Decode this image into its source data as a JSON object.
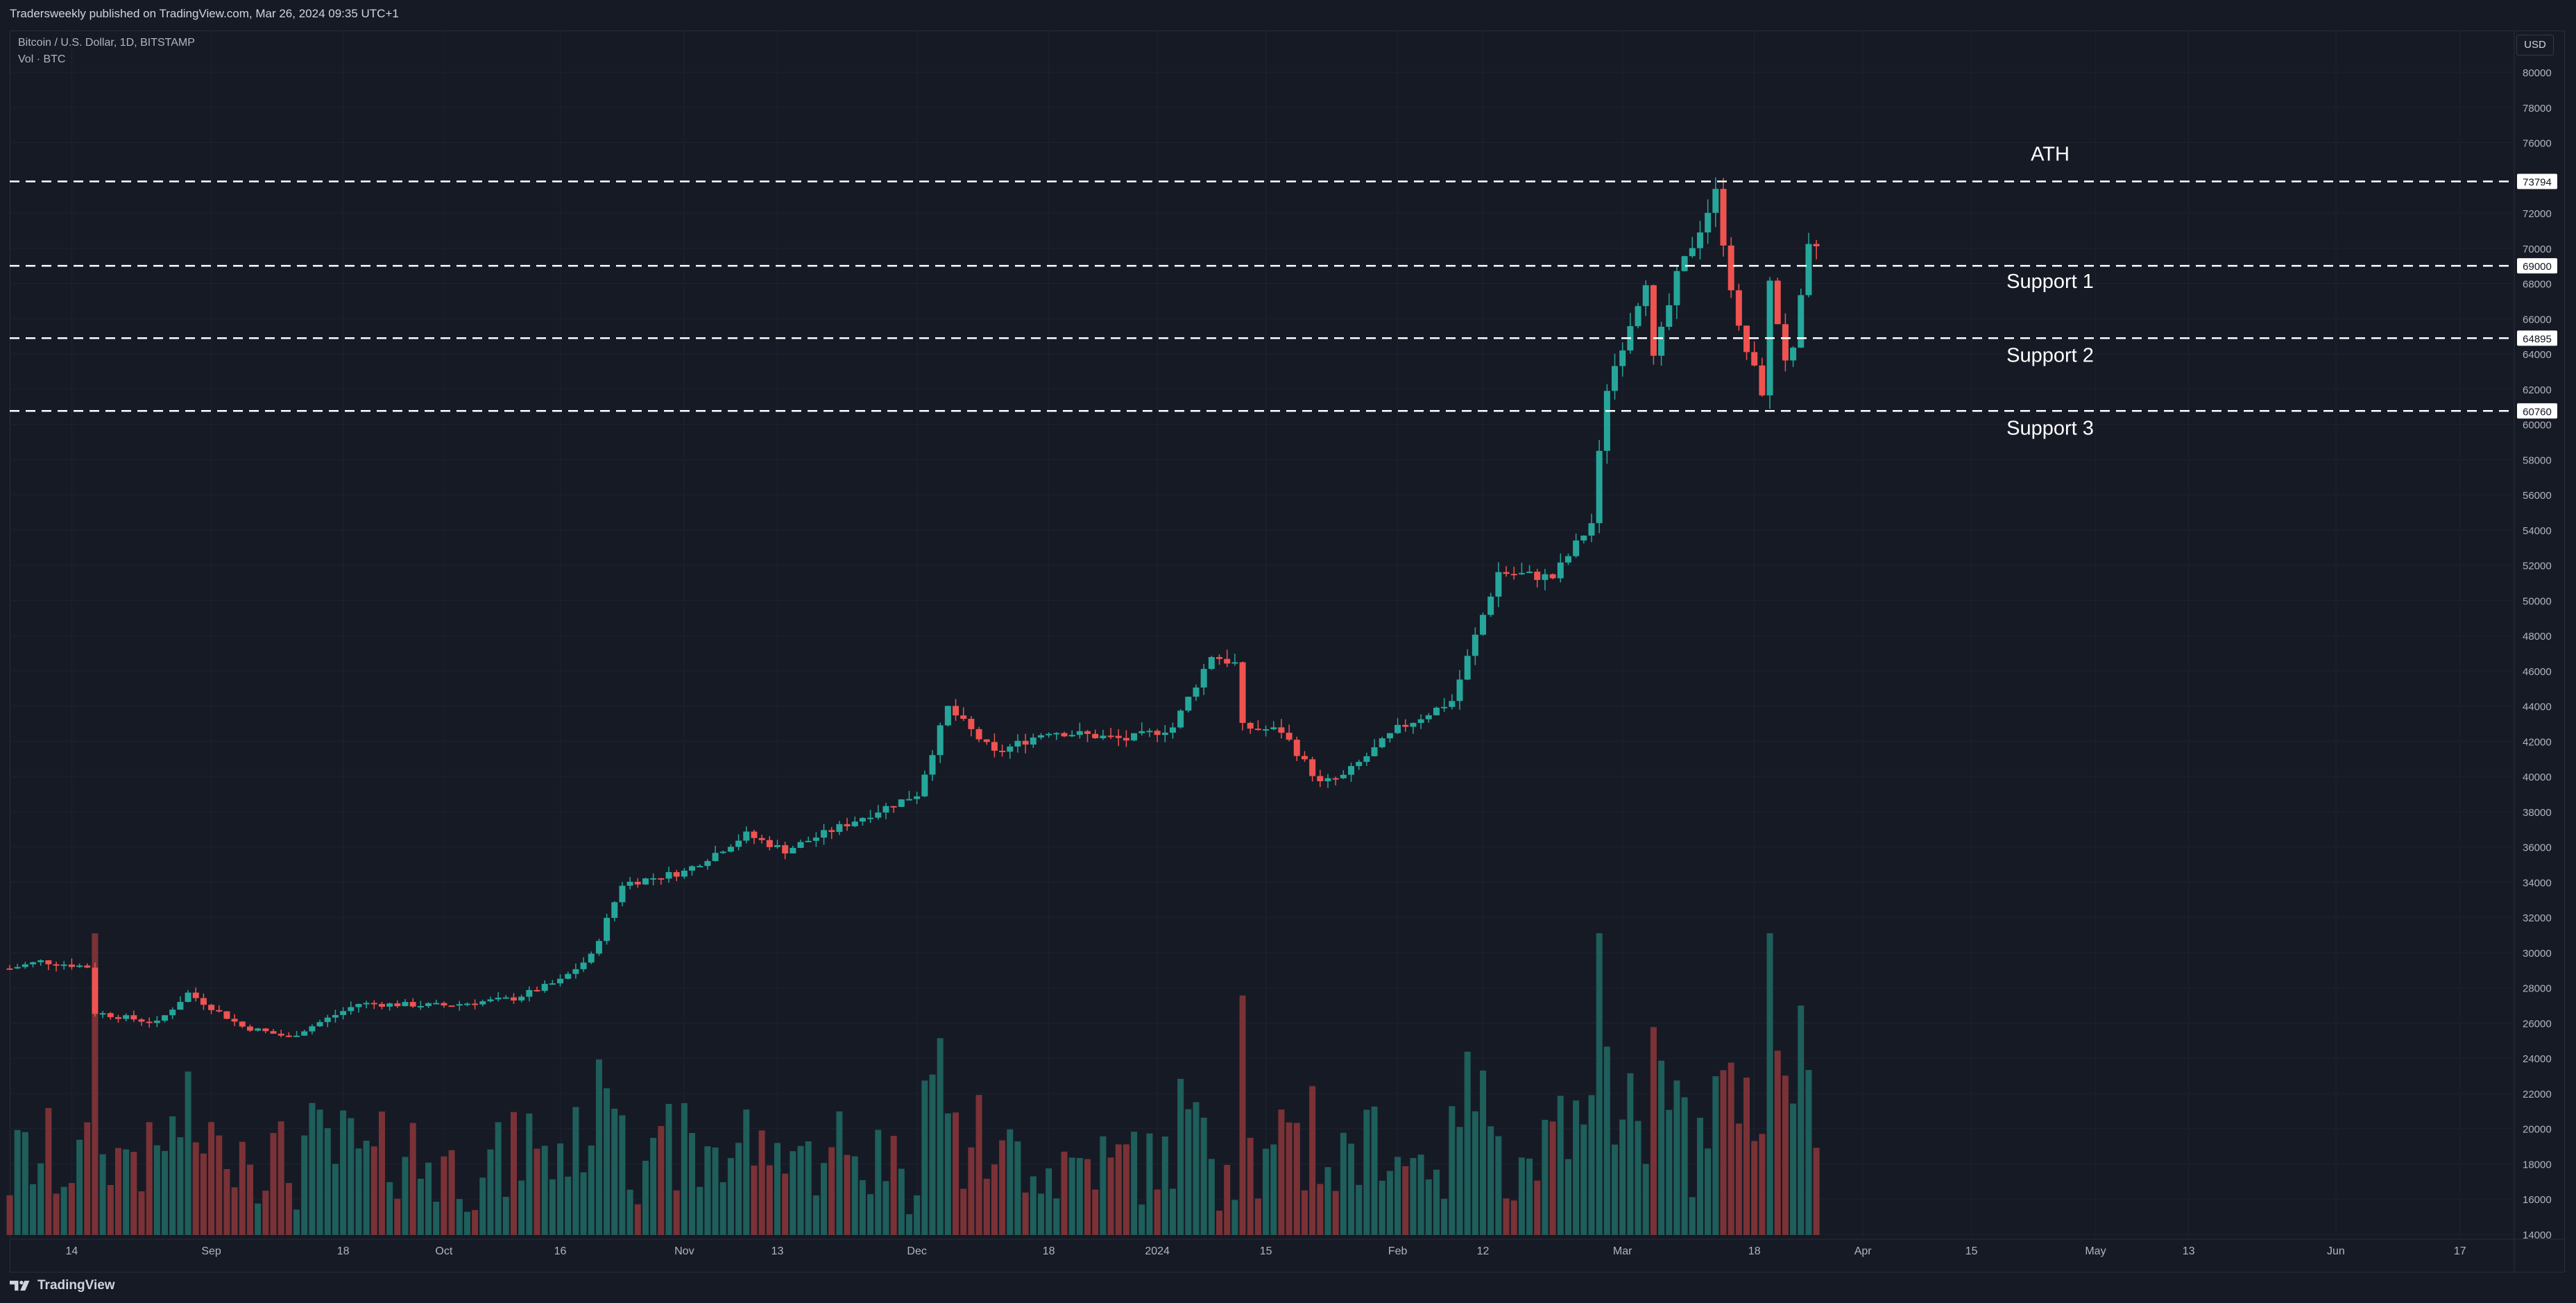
{
  "header": {
    "published": "Tradersweekly published on TradingView.com, Mar 26, 2024 09:35 UTC+1"
  },
  "legend": {
    "symbol": "Bitcoin / U.S. Dollar, 1D, BITSTAMP",
    "volume": "Vol · BTC"
  },
  "currency": "USD",
  "footer": {
    "logo_text": "TradingView",
    "logo_icon": "tradingview-logo-icon"
  },
  "colors": {
    "up": "#26a69a",
    "down": "#ef5350",
    "vol_up": "#1e5e5b",
    "vol_down": "#7a3236",
    "background": "#161a25",
    "grid": "#1f2330",
    "axis_text": "#b2b5be",
    "level_line": "#ffffff"
  },
  "chart_data": {
    "type": "candlestick",
    "title": "",
    "x_range": [
      "2023-08-06",
      "2024-06-24"
    ],
    "price_axis": {
      "min": 14000,
      "max": 80000,
      "ticks": [
        80000,
        78000,
        76000,
        72000,
        70000,
        68000,
        66000,
        64000,
        62000,
        60000,
        58000,
        56000,
        54000,
        52000,
        50000,
        48000,
        46000,
        44000,
        42000,
        40000,
        38000,
        36000,
        34000,
        32000,
        30000,
        28000,
        26000,
        24000,
        22000,
        20000,
        18000,
        16000,
        14000
      ]
    },
    "time_axis": {
      "ticks": [
        {
          "label": "14",
          "date": "2023-08-14"
        },
        {
          "label": "Sep",
          "date": "2023-09-01"
        },
        {
          "label": "18",
          "date": "2023-09-18"
        },
        {
          "label": "Oct",
          "date": "2023-10-01"
        },
        {
          "label": "16",
          "date": "2023-10-16"
        },
        {
          "label": "Nov",
          "date": "2023-11-01"
        },
        {
          "label": "13",
          "date": "2023-11-13"
        },
        {
          "label": "Dec",
          "date": "2023-12-01"
        },
        {
          "label": "18",
          "date": "2023-12-18"
        },
        {
          "label": "2024",
          "date": "2024-01-01"
        },
        {
          "label": "15",
          "date": "2024-01-15"
        },
        {
          "label": "Feb",
          "date": "2024-02-01"
        },
        {
          "label": "12",
          "date": "2024-02-12"
        },
        {
          "label": "Mar",
          "date": "2024-03-01"
        },
        {
          "label": "18",
          "date": "2024-03-18"
        },
        {
          "label": "Apr",
          "date": "2024-04-01"
        },
        {
          "label": "15",
          "date": "2024-04-15"
        },
        {
          "label": "May",
          "date": "2024-05-01"
        },
        {
          "label": "13",
          "date": "2024-05-13"
        },
        {
          "label": "Jun",
          "date": "2024-06-01"
        },
        {
          "label": "17",
          "date": "2024-06-17"
        }
      ]
    },
    "levels": [
      {
        "name": "ATH",
        "price": 73794,
        "label": "73794"
      },
      {
        "name": "Support 1",
        "price": 69000,
        "label": "69000"
      },
      {
        "name": "Support 2",
        "price": 64895,
        "label": "64895"
      },
      {
        "name": "Support 3",
        "price": 60760,
        "label": "60760"
      }
    ],
    "close_path": [
      {
        "date": "2023-08-06",
        "price": 29100
      },
      {
        "date": "2023-08-10",
        "price": 29500
      },
      {
        "date": "2023-08-16",
        "price": 29200
      },
      {
        "date": "2023-08-17",
        "price": 26600
      },
      {
        "date": "2023-08-25",
        "price": 26000
      },
      {
        "date": "2023-08-29",
        "price": 27700
      },
      {
        "date": "2023-09-05",
        "price": 25800
      },
      {
        "date": "2023-09-11",
        "price": 25200
      },
      {
        "date": "2023-09-20",
        "price": 27100
      },
      {
        "date": "2023-10-01",
        "price": 27000
      },
      {
        "date": "2023-10-10",
        "price": 27400
      },
      {
        "date": "2023-10-16",
        "price": 28400
      },
      {
        "date": "2023-10-20",
        "price": 29800
      },
      {
        "date": "2023-10-24",
        "price": 33900
      },
      {
        "date": "2023-11-01",
        "price": 34600
      },
      {
        "date": "2023-11-09",
        "price": 36700
      },
      {
        "date": "2023-11-14",
        "price": 35800
      },
      {
        "date": "2023-11-24",
        "price": 37700
      },
      {
        "date": "2023-12-01",
        "price": 39000
      },
      {
        "date": "2023-12-05",
        "price": 43900
      },
      {
        "date": "2023-12-11",
        "price": 41300
      },
      {
        "date": "2023-12-18",
        "price": 42600
      },
      {
        "date": "2023-12-28",
        "price": 42100
      },
      {
        "date": "2024-01-03",
        "price": 42800
      },
      {
        "date": "2024-01-08",
        "price": 46900
      },
      {
        "date": "2024-01-11",
        "price": 46400
      },
      {
        "date": "2024-01-12",
        "price": 42800
      },
      {
        "date": "2024-01-17",
        "price": 42600
      },
      {
        "date": "2024-01-22",
        "price": 39600
      },
      {
        "date": "2024-01-25",
        "price": 40000
      },
      {
        "date": "2024-02-01",
        "price": 42700
      },
      {
        "date": "2024-02-08",
        "price": 44300
      },
      {
        "date": "2024-02-14",
        "price": 51600
      },
      {
        "date": "2024-02-21",
        "price": 51300
      },
      {
        "date": "2024-02-26",
        "price": 54400
      },
      {
        "date": "2024-02-28",
        "price": 62100
      },
      {
        "date": "2024-03-04",
        "price": 68300
      },
      {
        "date": "2024-03-05",
        "price": 63600
      },
      {
        "date": "2024-03-08",
        "price": 68300
      },
      {
        "date": "2024-03-13",
        "price": 73100
      },
      {
        "date": "2024-03-16",
        "price": 65300
      },
      {
        "date": "2024-03-19",
        "price": 61900
      },
      {
        "date": "2024-03-20",
        "price": 67900
      },
      {
        "date": "2024-03-22",
        "price": 63800
      },
      {
        "date": "2024-03-23",
        "price": 64000
      },
      {
        "date": "2024-03-25",
        "price": 69900
      },
      {
        "date": "2024-03-26",
        "price": 70100
      }
    ]
  },
  "annotations": {
    "ath": "ATH",
    "support1": "Support 1",
    "support2": "Support 2",
    "support3": "Support 3"
  }
}
